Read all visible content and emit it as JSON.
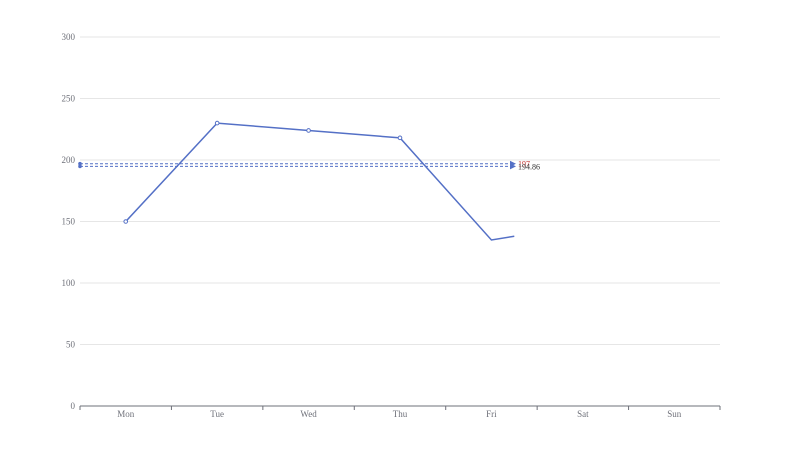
{
  "chart_data": {
    "type": "line",
    "categories": [
      "Mon",
      "Tue",
      "Wed",
      "Thu",
      "Fri",
      "Sat",
      "Sun"
    ],
    "series": [
      {
        "values": [
          150,
          230,
          224,
          218,
          135,
          null,
          null
        ],
        "partial_end": 138,
        "color": "#5470c6"
      }
    ],
    "ylim": [
      0,
      300
    ],
    "yticks": [
      0,
      50,
      100,
      150,
      200,
      250,
      300
    ],
    "grid": true,
    "mark_lines": [
      {
        "value": 197,
        "label": "197",
        "color": "#5470c6",
        "label_color": "#c23531"
      },
      {
        "value": 194.86,
        "label": "194.86",
        "color": "#5470c6",
        "label_color": "#333333"
      }
    ]
  }
}
